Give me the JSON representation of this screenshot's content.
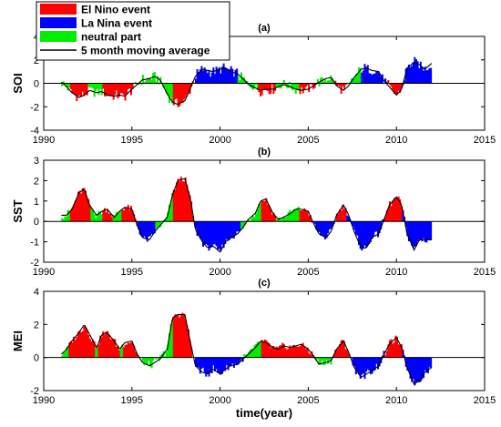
{
  "legend": {
    "entries": [
      {
        "label": "El Nino event",
        "color": "#ff0000",
        "kind": "patch"
      },
      {
        "label": "La Nina event",
        "color": "#0000ff",
        "kind": "patch"
      },
      {
        "label": "neutral part",
        "color": "#00ee00",
        "kind": "patch"
      },
      {
        "label": "5 month moving average",
        "color": "#000000",
        "kind": "line"
      }
    ]
  },
  "xlabel": "time(year)",
  "chart_data": [
    {
      "type": "bar",
      "title": "(a)",
      "ylabel": "SOI",
      "xlim": [
        1990,
        2015
      ],
      "ylim": [
        -4,
        4
      ],
      "xticks": [
        1990,
        1995,
        2000,
        2005,
        2010,
        2015
      ],
      "yticks": [
        -4,
        -2,
        0,
        2,
        4
      ],
      "grid": false,
      "phases": [
        {
          "start": 1991.0,
          "end": 1991.5,
          "class": "neutral"
        },
        {
          "start": 1991.5,
          "end": 1992.5,
          "class": "elnino"
        },
        {
          "start": 1992.5,
          "end": 1993.3,
          "class": "neutral"
        },
        {
          "start": 1993.3,
          "end": 1995.2,
          "class": "elnino"
        },
        {
          "start": 1995.2,
          "end": 1997.3,
          "class": "neutral"
        },
        {
          "start": 1997.3,
          "end": 1998.5,
          "class": "elnino"
        },
        {
          "start": 1998.5,
          "end": 2001.0,
          "class": "lanina"
        },
        {
          "start": 2001.0,
          "end": 2002.2,
          "class": "neutral"
        },
        {
          "start": 2002.2,
          "end": 2003.2,
          "class": "elnino"
        },
        {
          "start": 2003.2,
          "end": 2004.5,
          "class": "neutral"
        },
        {
          "start": 2004.5,
          "end": 2005.5,
          "class": "elnino"
        },
        {
          "start": 2005.5,
          "end": 2006.5,
          "class": "neutral"
        },
        {
          "start": 2006.5,
          "end": 2007.2,
          "class": "elnino"
        },
        {
          "start": 2007.2,
          "end": 2008.0,
          "class": "neutral"
        },
        {
          "start": 2008.0,
          "end": 2009.5,
          "class": "lanina"
        },
        {
          "start": 2009.5,
          "end": 2010.3,
          "class": "elnino"
        },
        {
          "start": 2010.3,
          "end": 2012.0,
          "class": "lanina"
        }
      ],
      "smooth": {
        "x": [
          1991.0,
          1991.3,
          1991.6,
          1992.0,
          1992.3,
          1992.6,
          1993.0,
          1993.3,
          1993.6,
          1994.0,
          1994.3,
          1994.6,
          1995.0,
          1995.3,
          1995.6,
          1996.0,
          1996.3,
          1996.6,
          1997.0,
          1997.3,
          1997.6,
          1998.0,
          1998.3,
          1998.6,
          1999.0,
          1999.3,
          1999.6,
          2000.0,
          2000.3,
          2000.6,
          2001.0,
          2001.3,
          2001.6,
          2002.0,
          2002.3,
          2002.6,
          2003.0,
          2003.3,
          2003.6,
          2004.0,
          2004.3,
          2004.6,
          2005.0,
          2005.3,
          2005.6,
          2006.0,
          2006.3,
          2006.6,
          2007.0,
          2007.3,
          2007.6,
          2008.0,
          2008.3,
          2008.6,
          2009.0,
          2009.3,
          2009.6,
          2010.0,
          2010.3,
          2010.6,
          2011.0,
          2011.3,
          2011.6,
          2012.0
        ],
        "y": [
          0.1,
          -0.3,
          -0.8,
          -1.2,
          -1.0,
          -0.6,
          -0.8,
          -0.7,
          -1.0,
          -1.1,
          -1.0,
          -1.1,
          -0.5,
          -0.1,
          0.3,
          0.4,
          0.6,
          0.3,
          -0.9,
          -1.6,
          -1.8,
          -1.5,
          -0.5,
          0.6,
          1.2,
          1.1,
          1.0,
          1.2,
          1.3,
          1.0,
          0.8,
          0.4,
          -0.1,
          -0.4,
          -0.6,
          -0.5,
          -0.5,
          -0.3,
          -0.1,
          -0.3,
          -0.5,
          -0.6,
          -0.5,
          -0.2,
          0.1,
          0.4,
          0.5,
          -0.2,
          -0.6,
          -0.2,
          0.5,
          1.2,
          1.3,
          1.1,
          1.0,
          0.2,
          -0.3,
          -1.0,
          -0.5,
          1.3,
          1.8,
          1.6,
          1.2,
          1.7
        ]
      },
      "spike_amp": 0.55
    },
    {
      "type": "bar",
      "title": "(b)",
      "ylabel": "SST",
      "xlim": [
        1990,
        2015
      ],
      "ylim": [
        -2,
        3
      ],
      "xticks": [
        1990,
        1995,
        2000,
        2005,
        2010,
        2015
      ],
      "yticks": [
        -2,
        -1,
        0,
        1,
        2,
        3
      ],
      "grid": false,
      "phases": [
        {
          "start": 1991.0,
          "end": 1991.5,
          "class": "neutral"
        },
        {
          "start": 1991.5,
          "end": 1992.7,
          "class": "elnino"
        },
        {
          "start": 1992.7,
          "end": 1993.3,
          "class": "neutral"
        },
        {
          "start": 1993.3,
          "end": 1993.9,
          "class": "elnino"
        },
        {
          "start": 1993.9,
          "end": 1994.4,
          "class": "neutral"
        },
        {
          "start": 1994.4,
          "end": 1995.3,
          "class": "elnino"
        },
        {
          "start": 1995.3,
          "end": 1996.3,
          "class": "lanina"
        },
        {
          "start": 1996.3,
          "end": 1997.3,
          "class": "neutral"
        },
        {
          "start": 1997.3,
          "end": 1998.5,
          "class": "elnino"
        },
        {
          "start": 1998.5,
          "end": 2001.2,
          "class": "lanina"
        },
        {
          "start": 2001.2,
          "end": 2002.3,
          "class": "neutral"
        },
        {
          "start": 2002.3,
          "end": 2003.2,
          "class": "elnino"
        },
        {
          "start": 2003.2,
          "end": 2004.5,
          "class": "neutral"
        },
        {
          "start": 2004.5,
          "end": 2005.3,
          "class": "elnino"
        },
        {
          "start": 2005.3,
          "end": 2006.5,
          "class": "lanina"
        },
        {
          "start": 2006.5,
          "end": 2007.2,
          "class": "elnino"
        },
        {
          "start": 2007.2,
          "end": 2009.3,
          "class": "lanina"
        },
        {
          "start": 2009.3,
          "end": 2010.3,
          "class": "elnino"
        },
        {
          "start": 2010.3,
          "end": 2012.0,
          "class": "lanina"
        }
      ],
      "smooth": {
        "x": [
          1991.0,
          1991.3,
          1991.6,
          1992.0,
          1992.3,
          1992.6,
          1993.0,
          1993.3,
          1993.6,
          1994.0,
          1994.3,
          1994.6,
          1995.0,
          1995.3,
          1995.6,
          1996.0,
          1996.3,
          1996.6,
          1997.0,
          1997.3,
          1997.6,
          1998.0,
          1998.3,
          1998.6,
          1999.0,
          1999.3,
          1999.6,
          2000.0,
          2000.3,
          2000.6,
          2001.0,
          2001.3,
          2001.6,
          2002.0,
          2002.3,
          2002.6,
          2003.0,
          2003.3,
          2003.6,
          2004.0,
          2004.3,
          2004.6,
          2005.0,
          2005.3,
          2005.6,
          2006.0,
          2006.3,
          2006.6,
          2007.0,
          2007.3,
          2007.6,
          2008.0,
          2008.3,
          2008.6,
          2009.0,
          2009.3,
          2009.6,
          2010.0,
          2010.3,
          2010.6,
          2011.0,
          2011.3,
          2011.6,
          2012.0
        ],
        "y": [
          0.3,
          0.3,
          0.6,
          1.4,
          1.6,
          0.8,
          0.3,
          0.5,
          0.6,
          0.2,
          0.5,
          0.7,
          0.6,
          -0.2,
          -0.8,
          -0.9,
          -0.5,
          -0.2,
          0.2,
          1.3,
          2.0,
          2.1,
          1.2,
          -0.4,
          -1.0,
          -1.3,
          -1.2,
          -1.5,
          -1.0,
          -0.8,
          -0.6,
          -0.3,
          0.1,
          0.4,
          1.0,
          1.1,
          0.4,
          0.1,
          0.2,
          0.4,
          0.6,
          0.6,
          0.5,
          -0.1,
          -0.6,
          -0.8,
          -0.5,
          0.3,
          0.8,
          0.3,
          -0.5,
          -1.3,
          -1.3,
          -0.8,
          -0.6,
          0.1,
          0.8,
          1.2,
          0.8,
          -0.6,
          -1.4,
          -0.9,
          -0.9,
          -0.9
        ]
      },
      "spike_amp": 0.22
    },
    {
      "type": "bar",
      "title": "(c)",
      "ylabel": "MEI",
      "xlim": [
        1990,
        2015
      ],
      "ylim": [
        -2,
        4
      ],
      "xticks": [
        1990,
        1995,
        2000,
        2005,
        2010,
        2015
      ],
      "yticks": [
        -2,
        0,
        2,
        4
      ],
      "grid": false,
      "phases": [
        {
          "start": 1991.0,
          "end": 1991.4,
          "class": "neutral"
        },
        {
          "start": 1991.4,
          "end": 1992.9,
          "class": "elnino"
        },
        {
          "start": 1992.9,
          "end": 1993.1,
          "class": "neutral"
        },
        {
          "start": 1993.1,
          "end": 1994.3,
          "class": "elnino"
        },
        {
          "start": 1994.3,
          "end": 1994.5,
          "class": "neutral"
        },
        {
          "start": 1994.5,
          "end": 1995.3,
          "class": "elnino"
        },
        {
          "start": 1995.3,
          "end": 1997.3,
          "class": "neutral"
        },
        {
          "start": 1997.3,
          "end": 1998.5,
          "class": "elnino"
        },
        {
          "start": 1998.5,
          "end": 2001.3,
          "class": "lanina"
        },
        {
          "start": 2001.3,
          "end": 2002.3,
          "class": "neutral"
        },
        {
          "start": 2002.3,
          "end": 2005.4,
          "class": "elnino"
        },
        {
          "start": 2005.4,
          "end": 2006.4,
          "class": "neutral"
        },
        {
          "start": 2006.4,
          "end": 2007.3,
          "class": "elnino"
        },
        {
          "start": 2007.3,
          "end": 2009.3,
          "class": "lanina"
        },
        {
          "start": 2009.3,
          "end": 2010.3,
          "class": "elnino"
        },
        {
          "start": 2010.3,
          "end": 2012.0,
          "class": "lanina"
        }
      ],
      "smooth": {
        "x": [
          1991.0,
          1991.3,
          1991.6,
          1992.0,
          1992.3,
          1992.6,
          1993.0,
          1993.3,
          1993.6,
          1994.0,
          1994.3,
          1994.6,
          1995.0,
          1995.3,
          1995.6,
          1996.0,
          1996.3,
          1996.6,
          1997.0,
          1997.3,
          1997.6,
          1998.0,
          1998.3,
          1998.6,
          1999.0,
          1999.3,
          1999.6,
          2000.0,
          2000.3,
          2000.6,
          2001.0,
          2001.3,
          2001.6,
          2002.0,
          2002.3,
          2002.6,
          2003.0,
          2003.3,
          2003.6,
          2004.0,
          2004.3,
          2004.6,
          2005.0,
          2005.3,
          2005.6,
          2006.0,
          2006.3,
          2006.6,
          2007.0,
          2007.3,
          2007.6,
          2008.0,
          2008.3,
          2008.6,
          2009.0,
          2009.3,
          2009.6,
          2010.0,
          2010.3,
          2010.6,
          2011.0,
          2011.3,
          2011.6,
          2012.0
        ],
        "y": [
          0.2,
          0.5,
          1.0,
          1.5,
          2.0,
          1.4,
          0.6,
          1.4,
          1.5,
          1.0,
          0.5,
          0.9,
          1.0,
          0.2,
          -0.3,
          -0.5,
          -0.3,
          -0.1,
          0.5,
          2.4,
          2.6,
          2.6,
          1.0,
          -0.5,
          -0.9,
          -1.0,
          -0.7,
          -1.0,
          -0.7,
          -0.5,
          -0.4,
          -0.1,
          0.2,
          0.6,
          1.0,
          0.9,
          0.6,
          0.5,
          0.7,
          0.6,
          0.7,
          0.8,
          0.5,
          0.1,
          -0.4,
          -0.3,
          -0.2,
          0.5,
          1.0,
          0.3,
          -0.6,
          -1.2,
          -1.0,
          -0.8,
          -0.5,
          0.2,
          0.8,
          1.2,
          0.6,
          -0.6,
          -1.6,
          -1.4,
          -0.9,
          -0.6
        ]
      },
      "spike_amp": 0.3
    }
  ]
}
